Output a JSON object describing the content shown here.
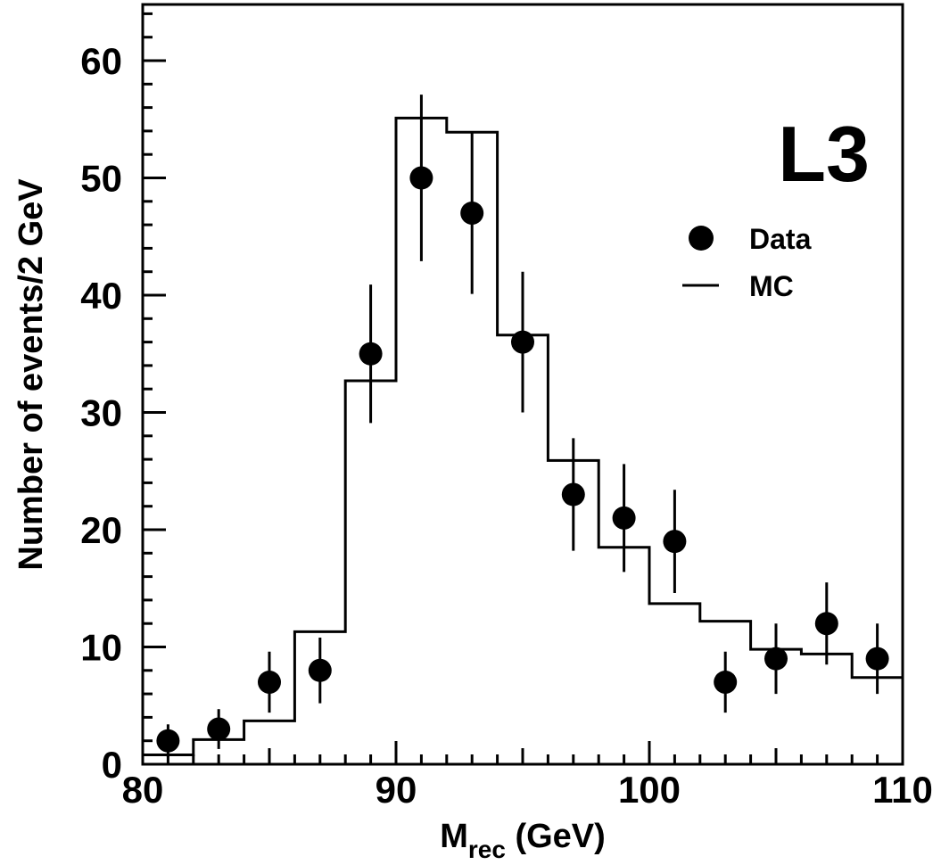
{
  "chart_data": {
    "type": "histogram_with_points",
    "experiment_label": "L3",
    "xlabel_main": "M",
    "xlabel_sub": "rec",
    "xlabel_unit": " (GeV)",
    "ylabel": "Number of events/2 GeV",
    "xlim": [
      80,
      110
    ],
    "ylim": [
      0,
      60
    ],
    "x_ticks": [
      80,
      90,
      100,
      110
    ],
    "y_ticks": [
      0,
      10,
      20,
      30,
      40,
      50,
      60
    ],
    "legend": {
      "position": "top-right",
      "data_label": "Data",
      "mc_label": "MC"
    },
    "mc_histogram": {
      "name": "MC",
      "bin_edges": [
        80,
        82,
        84,
        86,
        88,
        90,
        92,
        94,
        96,
        98,
        100,
        102,
        104,
        106,
        108,
        110
      ],
      "values": [
        0.8,
        2.1,
        3.7,
        11.3,
        32.7,
        55.1,
        53.9,
        36.6,
        25.9,
        18.5,
        13.7,
        12.2,
        9.8,
        9.4,
        7.4
      ]
    },
    "data_points": {
      "name": "Data",
      "x": [
        81,
        83,
        85,
        87,
        89,
        91,
        93,
        95,
        97,
        99,
        101,
        103,
        105,
        107,
        109
      ],
      "y": [
        2,
        3,
        7,
        8,
        35,
        50,
        47,
        36,
        23,
        21,
        19,
        7,
        9,
        12,
        9
      ],
      "err": [
        1.4,
        1.7,
        2.6,
        2.8,
        5.9,
        7.1,
        6.9,
        6.0,
        4.8,
        4.6,
        4.4,
        2.6,
        3.0,
        3.5,
        3.0
      ]
    },
    "grid": false
  }
}
